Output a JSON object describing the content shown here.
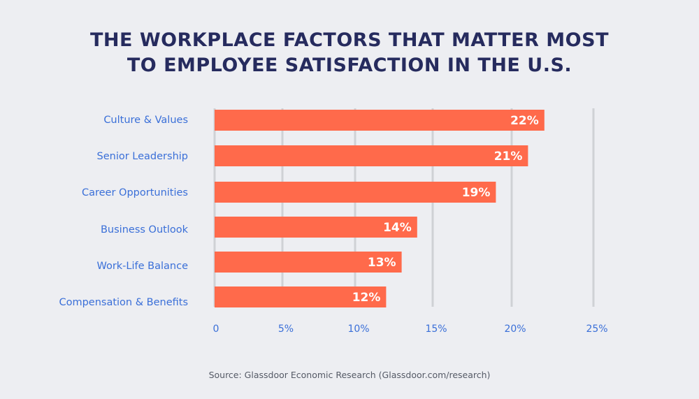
{
  "chart_data": {
    "type": "bar",
    "orientation": "horizontal",
    "title": [
      "THE WORKPLACE FACTORS THAT MATTER MOST",
      "TO EMPLOYEE SATISFACTION IN THE U.S."
    ],
    "categories": [
      "Culture & Values",
      "Senior Leadership",
      "Career Opportunities",
      "Business Outlook",
      "Work-Life Balance",
      "Compensation & Benefits"
    ],
    "values": [
      22,
      21,
      19,
      14,
      13,
      12
    ],
    "data_labels": [
      "22%",
      "21%",
      "19%",
      "14%",
      "13%",
      "12%"
    ],
    "xlim": [
      0,
      25
    ],
    "xticks": [
      0,
      5,
      10,
      15,
      20,
      25
    ],
    "xtick_labels": [
      "0",
      "5%",
      "10%",
      "15%",
      "20%",
      "25%"
    ],
    "grid": "vertical",
    "source": "Source: Glassdoor Economic Research (Glassdoor.com/research)",
    "colors": {
      "bar": "#ff6a4b",
      "label": "#3a6fd8",
      "title": "#262b5e",
      "grid": "#cfd1d5",
      "background": "#edeef2"
    }
  }
}
